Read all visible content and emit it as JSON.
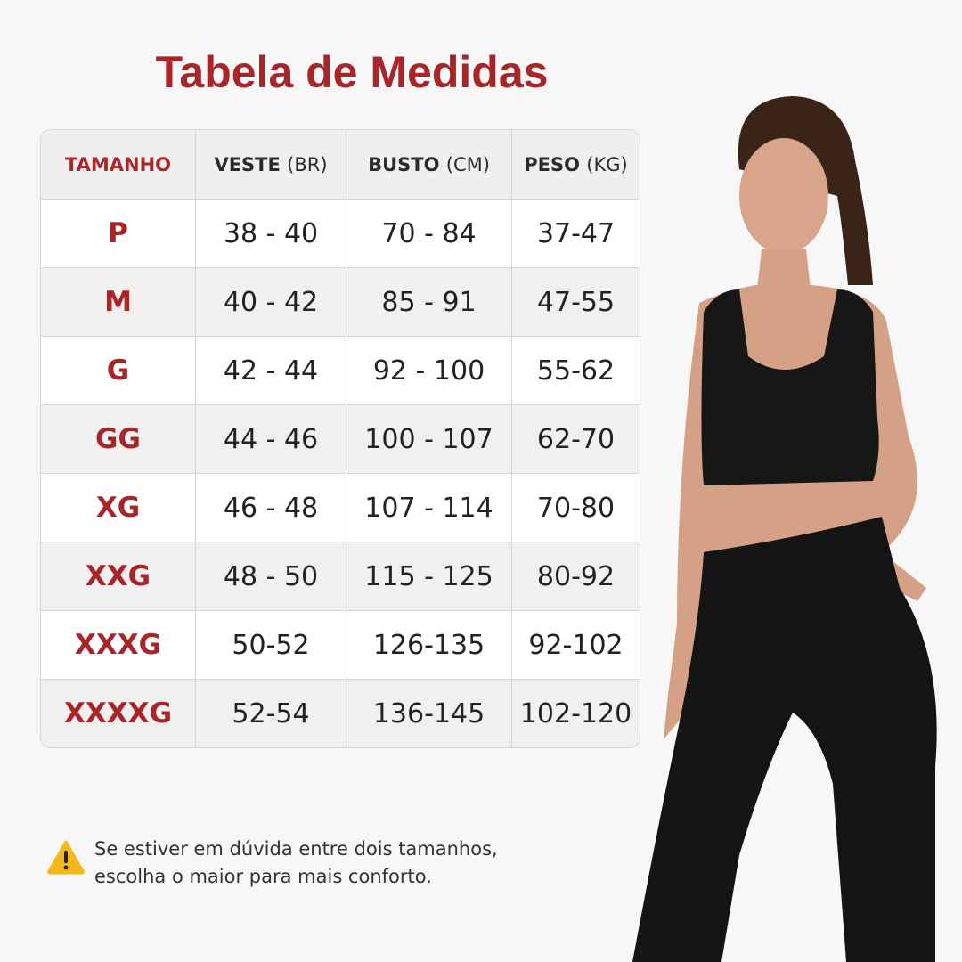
{
  "title": "Tabela de Medidas",
  "headers": [
    {
      "main": "TAMANHO",
      "unit": ""
    },
    {
      "main": "VESTE",
      "unit": "(BR)"
    },
    {
      "main": "BUSTO",
      "unit": "(CM)"
    },
    {
      "main": "PESO",
      "unit": "(KG)"
    }
  ],
  "rows": [
    [
      "P",
      "38 - 40",
      "70 - 84",
      "37-47"
    ],
    [
      "M",
      "40 - 42",
      "85 - 91",
      "47-55"
    ],
    [
      "G",
      "42 - 44",
      "92 - 100",
      "55-62"
    ],
    [
      "GG",
      "44 - 46",
      "100 - 107",
      "62-70"
    ],
    [
      "XG",
      "46 - 48",
      "107 - 114",
      "70-80"
    ],
    [
      "XXG",
      "48 - 50",
      "115 - 125",
      "80-92"
    ],
    [
      "XXXG",
      "50-52",
      "126-135",
      "92-102"
    ],
    [
      "XXXXG",
      "52-54",
      "136-145",
      "102-120"
    ]
  ],
  "note": {
    "icon": "warning-icon",
    "line1": "Se estiver em dúvida entre dois tamanhos,",
    "line2": "escolha o maior para mais conforto."
  },
  "colors": {
    "accent": "#a8262a",
    "warning": "#f2b81c"
  }
}
